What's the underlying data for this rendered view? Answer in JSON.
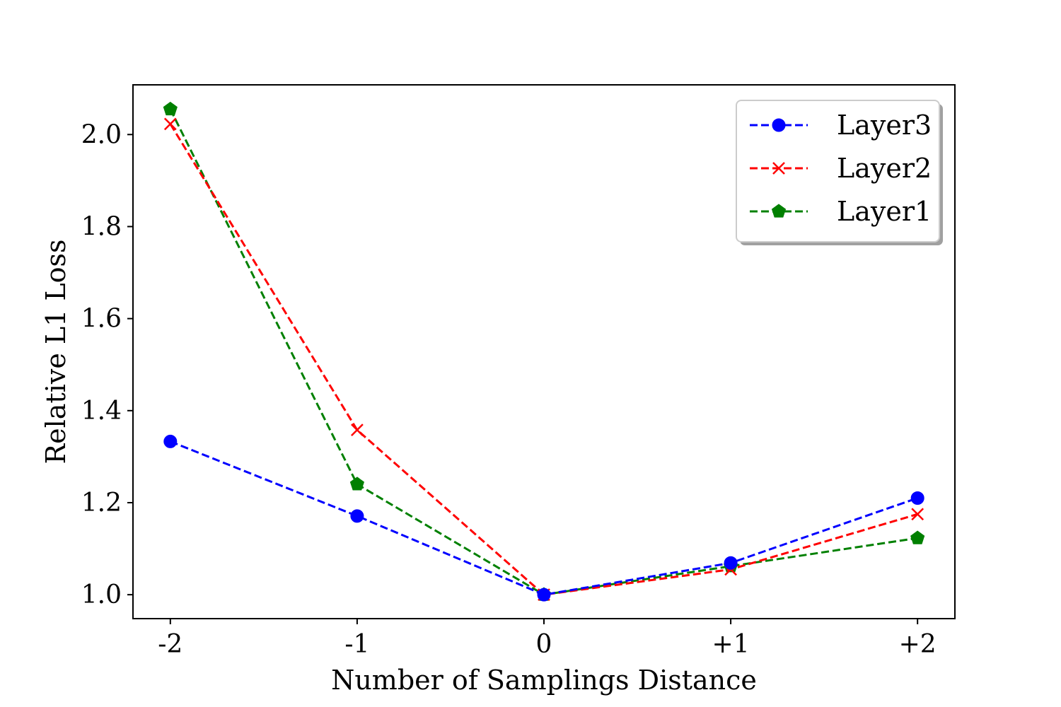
{
  "chart_data": {
    "type": "line",
    "title": "",
    "xlabel": "Number of Samplings Distance",
    "ylabel": "Relative L1 Loss",
    "categories": [
      "-2",
      "-1",
      "0",
      "+1",
      "+2"
    ],
    "x": [
      -2,
      -1,
      0,
      1,
      2
    ],
    "xlim": [
      -2.2,
      2.2
    ],
    "ylim": [
      0.948,
      2.108
    ],
    "yticks": [
      1.0,
      1.2,
      1.4,
      1.6,
      1.8,
      2.0
    ],
    "ytick_labels": [
      "1.0",
      "1.2",
      "1.4",
      "1.6",
      "1.8",
      "2.0"
    ],
    "grid": false,
    "legend_position": "top-right",
    "series": [
      {
        "name": "Layer3",
        "color": "#0000ff",
        "marker": "circle",
        "linestyle": "dashed",
        "values": [
          1.333,
          1.171,
          1.0,
          1.069,
          1.21
        ]
      },
      {
        "name": "Layer2",
        "color": "#ff0000",
        "marker": "x",
        "linestyle": "dashed",
        "values": [
          2.023,
          1.358,
          1.0,
          1.055,
          1.175
        ]
      },
      {
        "name": "Layer1",
        "color": "#008000",
        "marker": "pentagon",
        "linestyle": "dashed",
        "values": [
          2.055,
          1.24,
          1.0,
          1.062,
          1.123
        ]
      }
    ]
  }
}
